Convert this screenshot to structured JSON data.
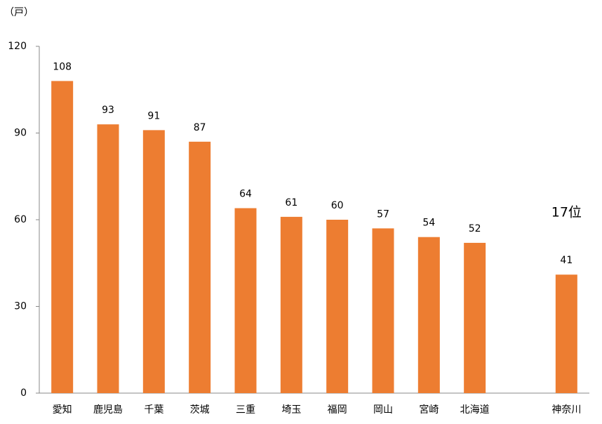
{
  "chart_data": {
    "type": "bar",
    "unit_label": "（戸）",
    "annotation": "17位",
    "categories": [
      "愛知",
      "鹿児島",
      "千葉",
      "茨城",
      "三重",
      "埼玉",
      "福岡",
      "岡山",
      "宮崎",
      "北海道",
      null,
      "神奈川"
    ],
    "values": [
      108,
      93,
      91,
      87,
      64,
      61,
      60,
      57,
      54,
      52,
      null,
      41
    ],
    "color": "#ed7d31",
    "ylim": [
      0,
      120
    ],
    "yticks": [
      0,
      30,
      60,
      90,
      120
    ],
    "grid": false
  }
}
